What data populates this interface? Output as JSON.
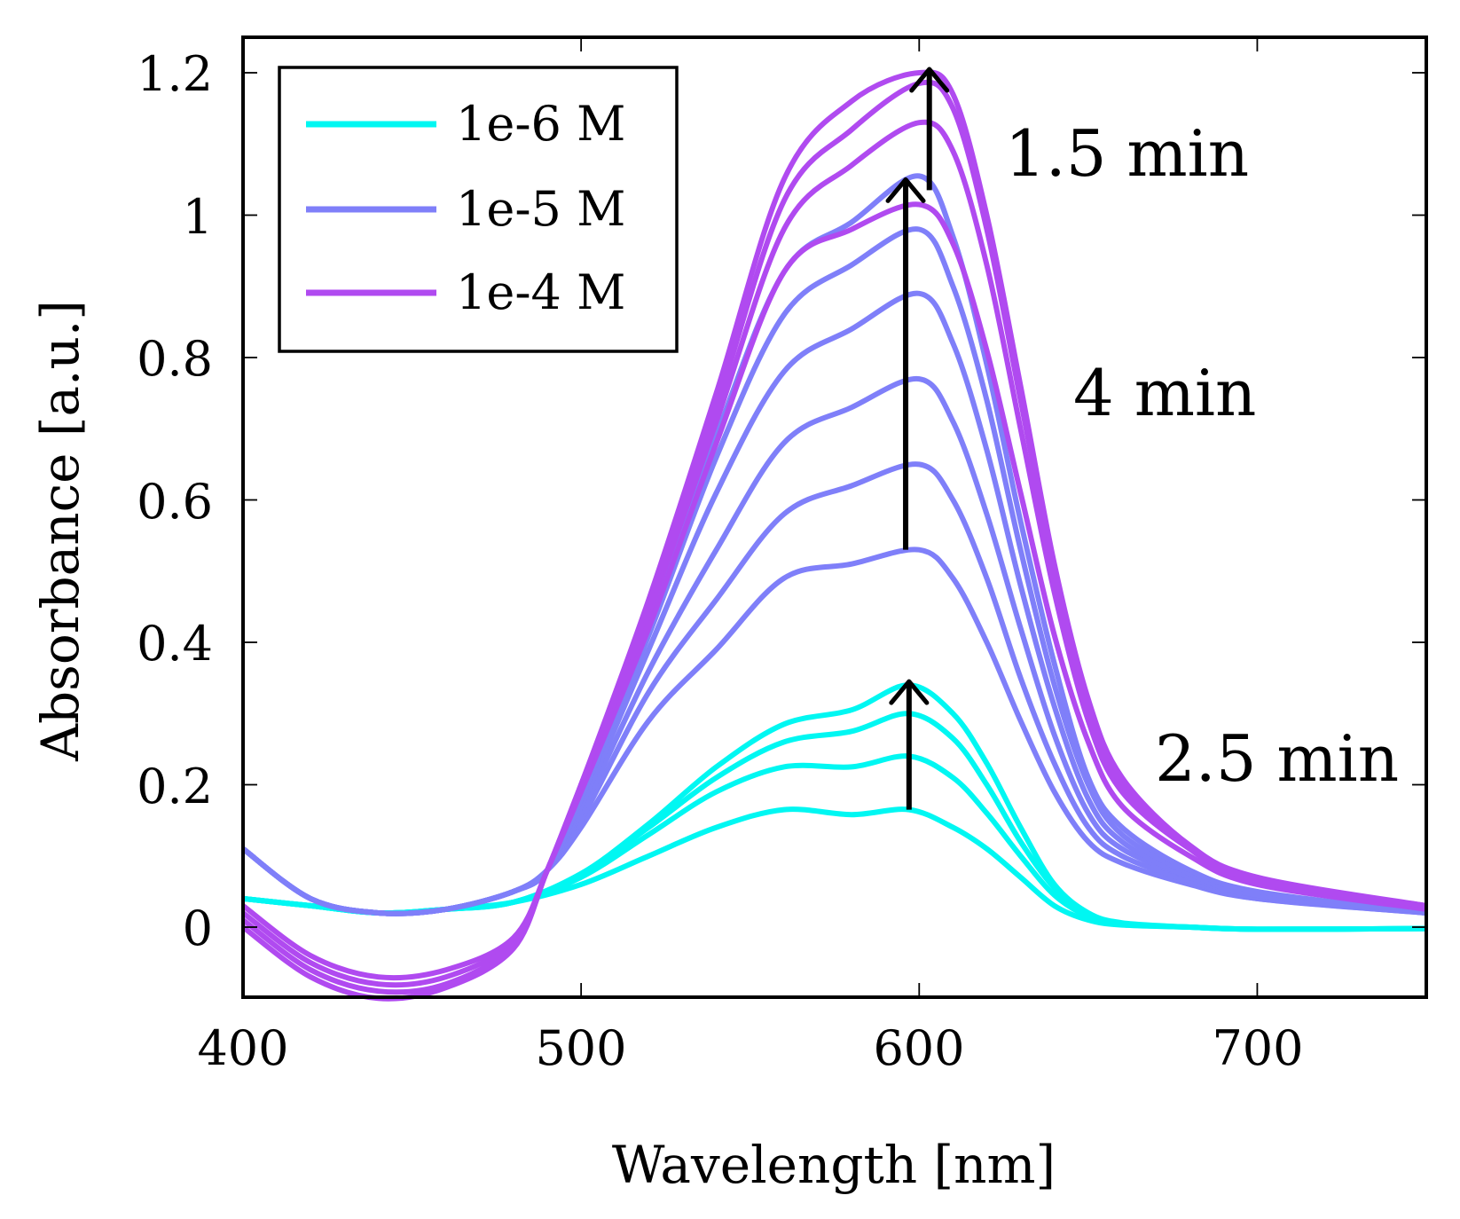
{
  "chart_data": {
    "type": "line",
    "xlabel": "Wavelength [nm]",
    "ylabel": "Absorbance [a.u.]",
    "xlim": [
      400,
      750
    ],
    "ylim": [
      -0.1,
      1.25
    ],
    "xticks": [
      400,
      500,
      600,
      700
    ],
    "xtick_labels": [
      "400",
      "500",
      "600",
      "700"
    ],
    "yticks": [
      0,
      0.2,
      0.4,
      0.6,
      0.8,
      1,
      1.2
    ],
    "ytick_labels": [
      "0",
      "0.2",
      "0.4",
      "0.6",
      "0.8",
      "1",
      "1.2"
    ],
    "grid": false,
    "legend_position": "top-left",
    "legend": [
      {
        "label": "1e-6 M",
        "color": "#00f7f2"
      },
      {
        "label": "1e-5 M",
        "color": "#7f7ff9"
      },
      {
        "label": "1e-4 M",
        "color": "#b04af0"
      }
    ],
    "annotations": [
      {
        "text": "1.5 min",
        "x": 628,
        "y": 1.09
      },
      {
        "text": "4 min",
        "x": 648,
        "y": 0.75
      },
      {
        "text": "2.5 min",
        "x": 670,
        "y": 0.23
      }
    ],
    "arrows": [
      {
        "x": 597,
        "y_from": 0.165,
        "y_to": 0.345
      },
      {
        "x": 596,
        "y_from": 0.53,
        "y_to": 1.05
      },
      {
        "x": 603,
        "y_from": 1.035,
        "y_to": 1.205
      }
    ],
    "series": [
      {
        "name": "1e-6 M",
        "color": "#00f7f2",
        "x": [
          400,
          420,
          440,
          460,
          480,
          500,
          520,
          540,
          560,
          580,
          597,
          610,
          620,
          630,
          640,
          650,
          660,
          680,
          700,
          750
        ],
        "values": [
          0.04,
          0.03,
          0.02,
          0.025,
          0.035,
          0.06,
          0.1,
          0.14,
          0.165,
          0.158,
          0.165,
          0.14,
          0.11,
          0.07,
          0.03,
          0.01,
          0.003,
          0.0,
          -0.003,
          -0.002
        ]
      },
      {
        "name": "1e-6 M",
        "color": "#00f7f2",
        "x": [
          400,
          420,
          440,
          460,
          480,
          500,
          520,
          540,
          560,
          580,
          597,
          610,
          620,
          630,
          640,
          650,
          660,
          680,
          700,
          750
        ],
        "values": [
          0.04,
          0.03,
          0.02,
          0.025,
          0.035,
          0.07,
          0.13,
          0.19,
          0.225,
          0.225,
          0.24,
          0.21,
          0.16,
          0.1,
          0.045,
          0.015,
          0.004,
          0.0,
          -0.003,
          -0.002
        ]
      },
      {
        "name": "1e-6 M",
        "color": "#00f7f2",
        "x": [
          400,
          420,
          440,
          460,
          480,
          500,
          520,
          540,
          560,
          580,
          597,
          610,
          620,
          630,
          640,
          650,
          660,
          680,
          700,
          750
        ],
        "values": [
          0.04,
          0.03,
          0.02,
          0.025,
          0.035,
          0.075,
          0.14,
          0.21,
          0.26,
          0.275,
          0.3,
          0.265,
          0.2,
          0.12,
          0.055,
          0.018,
          0.005,
          0.0,
          -0.003,
          -0.002
        ]
      },
      {
        "name": "1e-6 M",
        "color": "#00f7f2",
        "x": [
          400,
          420,
          440,
          460,
          480,
          500,
          520,
          540,
          560,
          580,
          597,
          610,
          620,
          630,
          640,
          650,
          660,
          680,
          700,
          750
        ],
        "values": [
          0.04,
          0.03,
          0.02,
          0.025,
          0.035,
          0.075,
          0.145,
          0.225,
          0.285,
          0.305,
          0.34,
          0.3,
          0.23,
          0.14,
          0.06,
          0.02,
          0.006,
          0.0,
          -0.003,
          -0.002
        ]
      },
      {
        "name": "1e-5 M",
        "color": "#7f7ff9",
        "x": [
          400,
          420,
          440,
          460,
          480,
          490,
          500,
          520,
          540,
          560,
          580,
          600,
          610,
          620,
          630,
          640,
          650,
          660,
          680,
          700,
          750
        ],
        "values": [
          0.11,
          0.04,
          0.02,
          0.025,
          0.05,
          0.08,
          0.14,
          0.29,
          0.39,
          0.49,
          0.51,
          0.53,
          0.49,
          0.4,
          0.29,
          0.19,
          0.12,
          0.09,
          0.06,
          0.04,
          0.02
        ]
      },
      {
        "name": "1e-5 M",
        "color": "#7f7ff9",
        "x": [
          400,
          420,
          440,
          460,
          480,
          490,
          500,
          520,
          540,
          560,
          580,
          600,
          610,
          620,
          630,
          640,
          650,
          660,
          680,
          700,
          750
        ],
        "values": [
          0.11,
          0.04,
          0.02,
          0.025,
          0.05,
          0.08,
          0.15,
          0.33,
          0.46,
          0.58,
          0.62,
          0.65,
          0.6,
          0.49,
          0.35,
          0.23,
          0.14,
          0.1,
          0.065,
          0.04,
          0.02
        ]
      },
      {
        "name": "1e-5 M",
        "color": "#7f7ff9",
        "x": [
          400,
          420,
          440,
          460,
          480,
          490,
          500,
          520,
          540,
          560,
          580,
          600,
          610,
          620,
          630,
          640,
          650,
          660,
          680,
          700,
          750
        ],
        "values": [
          0.11,
          0.04,
          0.02,
          0.025,
          0.05,
          0.08,
          0.16,
          0.36,
          0.53,
          0.68,
          0.73,
          0.77,
          0.71,
          0.58,
          0.42,
          0.27,
          0.16,
          0.11,
          0.07,
          0.045,
          0.02
        ]
      },
      {
        "name": "1e-5 M",
        "color": "#7f7ff9",
        "x": [
          400,
          420,
          440,
          460,
          480,
          490,
          500,
          520,
          540,
          560,
          580,
          600,
          610,
          620,
          630,
          640,
          650,
          660,
          680,
          700,
          750
        ],
        "values": [
          0.11,
          0.04,
          0.02,
          0.025,
          0.05,
          0.08,
          0.17,
          0.39,
          0.61,
          0.78,
          0.84,
          0.89,
          0.82,
          0.67,
          0.48,
          0.31,
          0.18,
          0.12,
          0.07,
          0.045,
          0.02
        ]
      },
      {
        "name": "1e-5 M",
        "color": "#7f7ff9",
        "x": [
          400,
          420,
          440,
          460,
          480,
          490,
          500,
          520,
          540,
          560,
          580,
          600,
          610,
          620,
          630,
          640,
          650,
          660,
          680,
          700,
          750
        ],
        "values": [
          0.11,
          0.04,
          0.02,
          0.025,
          0.05,
          0.08,
          0.18,
          0.41,
          0.66,
          0.86,
          0.93,
          0.98,
          0.9,
          0.74,
          0.53,
          0.34,
          0.2,
          0.13,
          0.075,
          0.045,
          0.02
        ]
      },
      {
        "name": "1e-5 M",
        "color": "#7f7ff9",
        "x": [
          400,
          420,
          440,
          460,
          480,
          490,
          500,
          520,
          540,
          560,
          580,
          600,
          610,
          620,
          630,
          640,
          650,
          660,
          680,
          700,
          750
        ],
        "values": [
          0.11,
          0.04,
          0.02,
          0.025,
          0.05,
          0.08,
          0.18,
          0.42,
          0.69,
          0.92,
          0.99,
          1.055,
          0.97,
          0.79,
          0.57,
          0.37,
          0.21,
          0.14,
          0.08,
          0.05,
          0.02
        ]
      },
      {
        "name": "1e-4 M",
        "color": "#b04af0",
        "x": [
          400,
          420,
          440,
          460,
          480,
          490,
          500,
          520,
          540,
          560,
          580,
          600,
          610,
          620,
          630,
          640,
          650,
          660,
          680,
          700,
          750
        ],
        "values": [
          0.0,
          -0.07,
          -0.1,
          -0.085,
          -0.03,
          0.08,
          0.19,
          0.42,
          0.68,
          0.92,
          0.98,
          1.015,
          0.96,
          0.81,
          0.61,
          0.41,
          0.26,
          0.17,
          0.1,
          0.06,
          0.025
        ]
      },
      {
        "name": "1e-4 M",
        "color": "#b04af0",
        "x": [
          400,
          420,
          440,
          460,
          480,
          490,
          500,
          520,
          540,
          560,
          580,
          600,
          610,
          620,
          630,
          640,
          650,
          660,
          680,
          700,
          750
        ],
        "values": [
          0.01,
          -0.06,
          -0.09,
          -0.08,
          -0.025,
          0.08,
          0.2,
          0.44,
          0.71,
          0.98,
          1.07,
          1.13,
          1.09,
          0.93,
          0.7,
          0.47,
          0.29,
          0.19,
          0.11,
          0.065,
          0.03
        ]
      },
      {
        "name": "1e-4 M",
        "color": "#b04af0",
        "x": [
          400,
          420,
          440,
          460,
          480,
          490,
          500,
          520,
          540,
          560,
          580,
          600,
          610,
          620,
          630,
          640,
          650,
          660,
          680,
          700,
          750
        ],
        "values": [
          0.02,
          -0.05,
          -0.08,
          -0.07,
          -0.02,
          0.08,
          0.2,
          0.45,
          0.73,
          1.02,
          1.12,
          1.185,
          1.15,
          0.98,
          0.74,
          0.5,
          0.31,
          0.2,
          0.11,
          0.065,
          0.03
        ]
      },
      {
        "name": "1e-4 M",
        "color": "#b04af0",
        "x": [
          400,
          420,
          440,
          460,
          480,
          490,
          500,
          520,
          540,
          560,
          580,
          600,
          610,
          620,
          630,
          640,
          650,
          660,
          680,
          700,
          750
        ],
        "values": [
          0.03,
          -0.04,
          -0.07,
          -0.06,
          -0.015,
          0.08,
          0.2,
          0.46,
          0.75,
          1.05,
          1.16,
          1.2,
          1.17,
          1.0,
          0.76,
          0.51,
          0.32,
          0.21,
          0.115,
          0.07,
          0.03
        ]
      }
    ]
  }
}
